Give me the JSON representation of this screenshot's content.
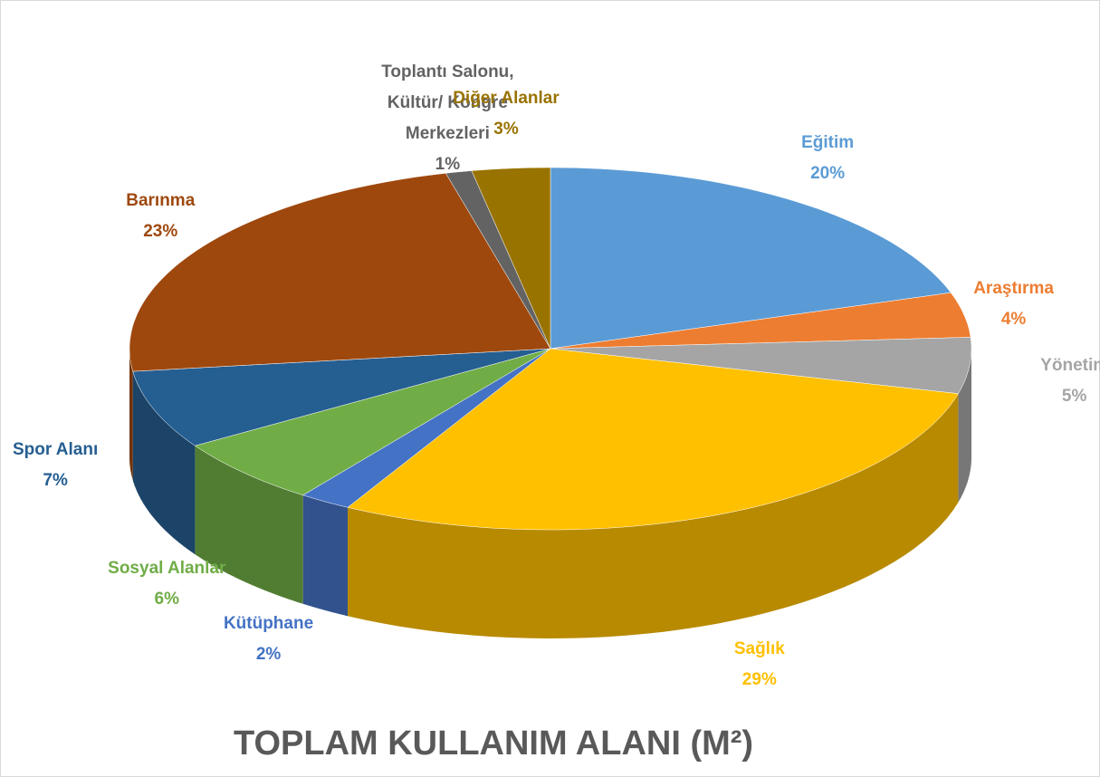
{
  "chart_data": {
    "type": "pie",
    "title": "TOPLAM KULLANIM ALANI (M²)",
    "categories": [
      "Eğitim",
      "Araştırma",
      "Yönetim",
      "Sağlık",
      "Kütüphane",
      "Sosyal Alanlar",
      "Spor Alanı",
      "Barınma",
      "Toplantı Salonu, Kültür/ Kongre Merkezleri",
      "Diğer Alanlar"
    ],
    "values": [
      20,
      4,
      5,
      29,
      2,
      6,
      7,
      23,
      1,
      3
    ],
    "value_labels": [
      "20%",
      "4%",
      "5%",
      "29%",
      "2%",
      "6%",
      "7%",
      "23%",
      "1%",
      "3%"
    ],
    "colors": [
      "#5b9bd5",
      "#ed7d31",
      "#a5a5a5",
      "#ffc000",
      "#4472c4",
      "#70ad47",
      "#255e91",
      "#9e480e",
      "#636363",
      "#997300"
    ]
  }
}
